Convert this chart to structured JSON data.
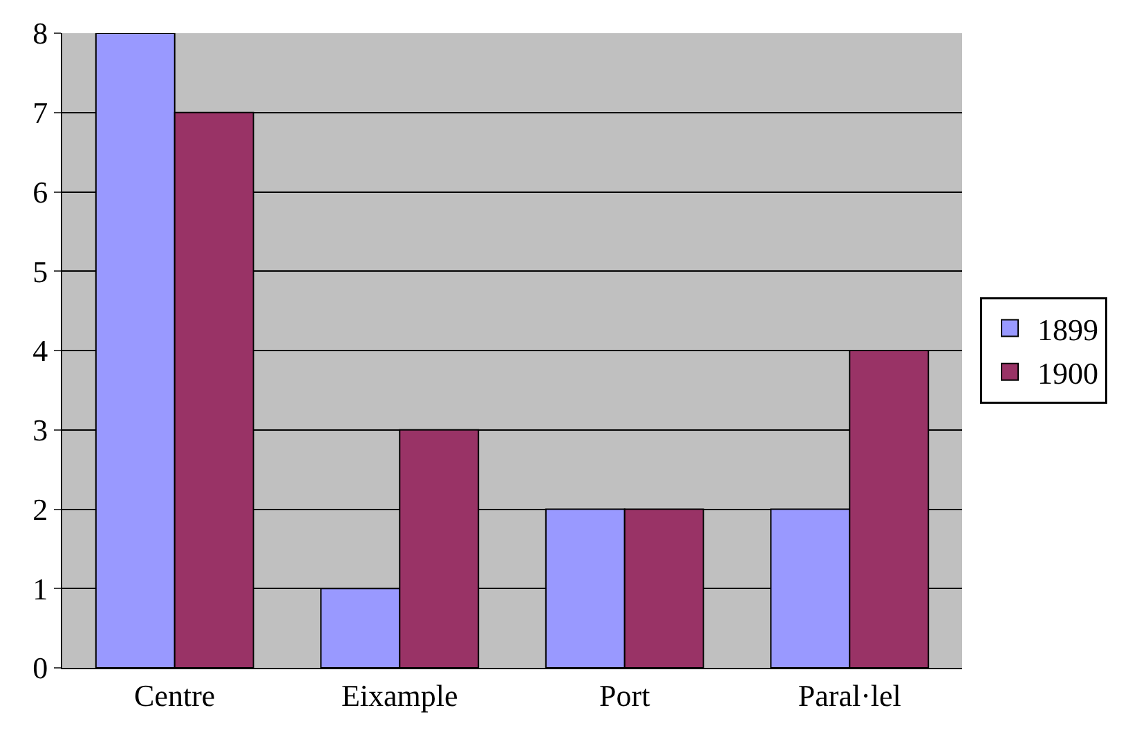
{
  "chart_data": {
    "type": "bar",
    "categories": [
      "Centre",
      "Eixample",
      "Port",
      "Paral·lel"
    ],
    "series": [
      {
        "name": "1899",
        "color": "#9999ff",
        "values": [
          8,
          1,
          2,
          2
        ]
      },
      {
        "name": "1900",
        "color": "#993366",
        "values": [
          7,
          3,
          2,
          4
        ]
      }
    ],
    "ylim": [
      0,
      8
    ],
    "yticks": [
      0,
      1,
      2,
      3,
      4,
      5,
      6,
      7,
      8
    ],
    "grid": "y",
    "legend": "right"
  }
}
